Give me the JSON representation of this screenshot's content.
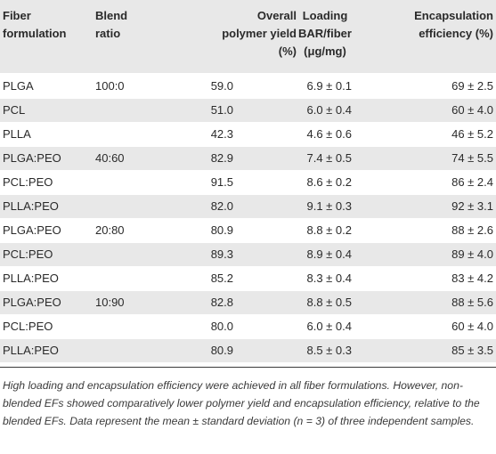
{
  "table": {
    "headers": [
      [
        "Fiber",
        "formulation"
      ],
      [
        "Blend",
        "ratio"
      ],
      [
        "Overall",
        "polymer yield",
        "(%)"
      ],
      [
        "Loading",
        "BAR/fiber",
        "(μg/mg)"
      ],
      [
        "Encapsulation",
        "efficiency (%)"
      ]
    ],
    "rows": [
      [
        "PLGA",
        "100:0",
        "59.0",
        "6.9 ± 0.1",
        "69 ± 2.5"
      ],
      [
        "PCL",
        "",
        "51.0",
        "6.0 ± 0.4",
        "60 ± 4.0"
      ],
      [
        "PLLA",
        "",
        "42.3",
        "4.6 ± 0.6",
        "46 ± 5.2"
      ],
      [
        "PLGA:PEO",
        "40:60",
        "82.9",
        "7.4 ± 0.5",
        "74 ± 5.5"
      ],
      [
        "PCL:PEO",
        "",
        "91.5",
        "8.6 ± 0.2",
        "86 ± 2.4"
      ],
      [
        "PLLA:PEO",
        "",
        "82.0",
        "9.1 ± 0.3",
        "92 ± 3.1"
      ],
      [
        "PLGA:PEO",
        "20:80",
        "80.9",
        "8.8 ± 0.2",
        "88 ± 2.6"
      ],
      [
        "PCL:PEO",
        "",
        "89.3",
        "8.9 ± 0.4",
        "89 ± 4.0"
      ],
      [
        "PLLA:PEO",
        "",
        "85.2",
        "8.3 ± 0.4",
        "83 ± 4.2"
      ],
      [
        "PLGA:PEO",
        "10:90",
        "82.8",
        "8.8 ± 0.5",
        "88 ± 5.6"
      ],
      [
        "PCL:PEO",
        "",
        "80.0",
        "6.0 ± 0.4",
        "60 ± 4.0"
      ],
      [
        "PLLA:PEO",
        "",
        "80.9",
        "8.5 ± 0.3",
        "85 ± 3.5"
      ]
    ],
    "footnote": "High loading and encapsulation efficiency were achieved in all fiber formulations. However, non-blended EFs showed comparatively lower polymer yield and encapsulation efficiency, relative to the blended EFs. Data represent the mean ± standard deviation (n = 3) of three independent samples."
  }
}
